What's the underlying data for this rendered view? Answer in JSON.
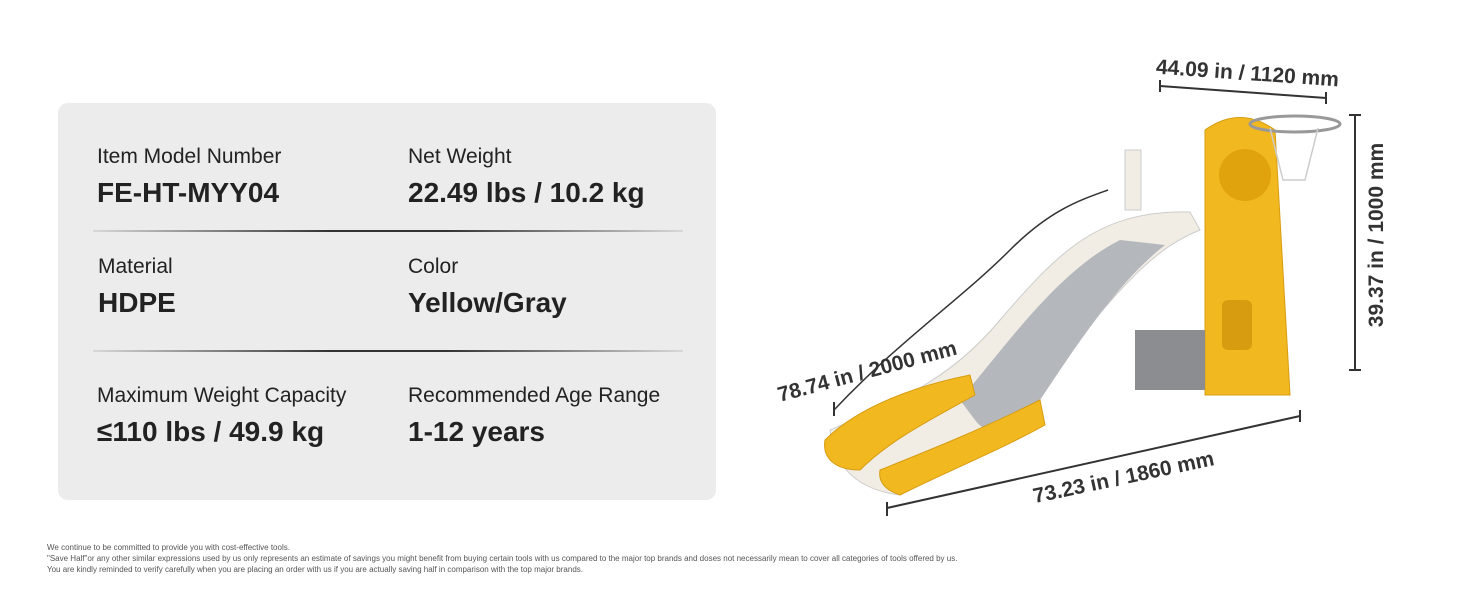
{
  "specs": [
    {
      "label": "Item Model Number",
      "value": "FE-HT-MYY04"
    },
    {
      "label": "Net Weight",
      "value": "22.49 lbs / 10.2 kg"
    },
    {
      "label": "Material",
      "value": "HDPE"
    },
    {
      "label": "Color",
      "value": "Yellow/Gray"
    },
    {
      "label": "Maximum Weight Capacity",
      "value": "≤110 lbs / 49.9 kg"
    },
    {
      "label": "Recommended Age Range",
      "value": "1-12 years"
    }
  ],
  "dimensions": {
    "width": "44.09 in / 1120 mm",
    "height": "39.37 in / 1000 mm",
    "slide_length": "78.74 in / 2000 mm",
    "length": "73.23 in / 1860 mm"
  },
  "disclaimer": [
    "We continue to be committed to provide you with cost-effective tools.",
    "\"Save Half\"or any other similar expressions used by us only represents an estimate of savings you might benefit from buying certain tools with us compared to the major top brands and doses not necessarily mean to cover all categories of tools offered by us.",
    "You are kindly reminded to verify carefully when you are placing an order with us if you are actually saving half in comparison with the top major brands."
  ]
}
